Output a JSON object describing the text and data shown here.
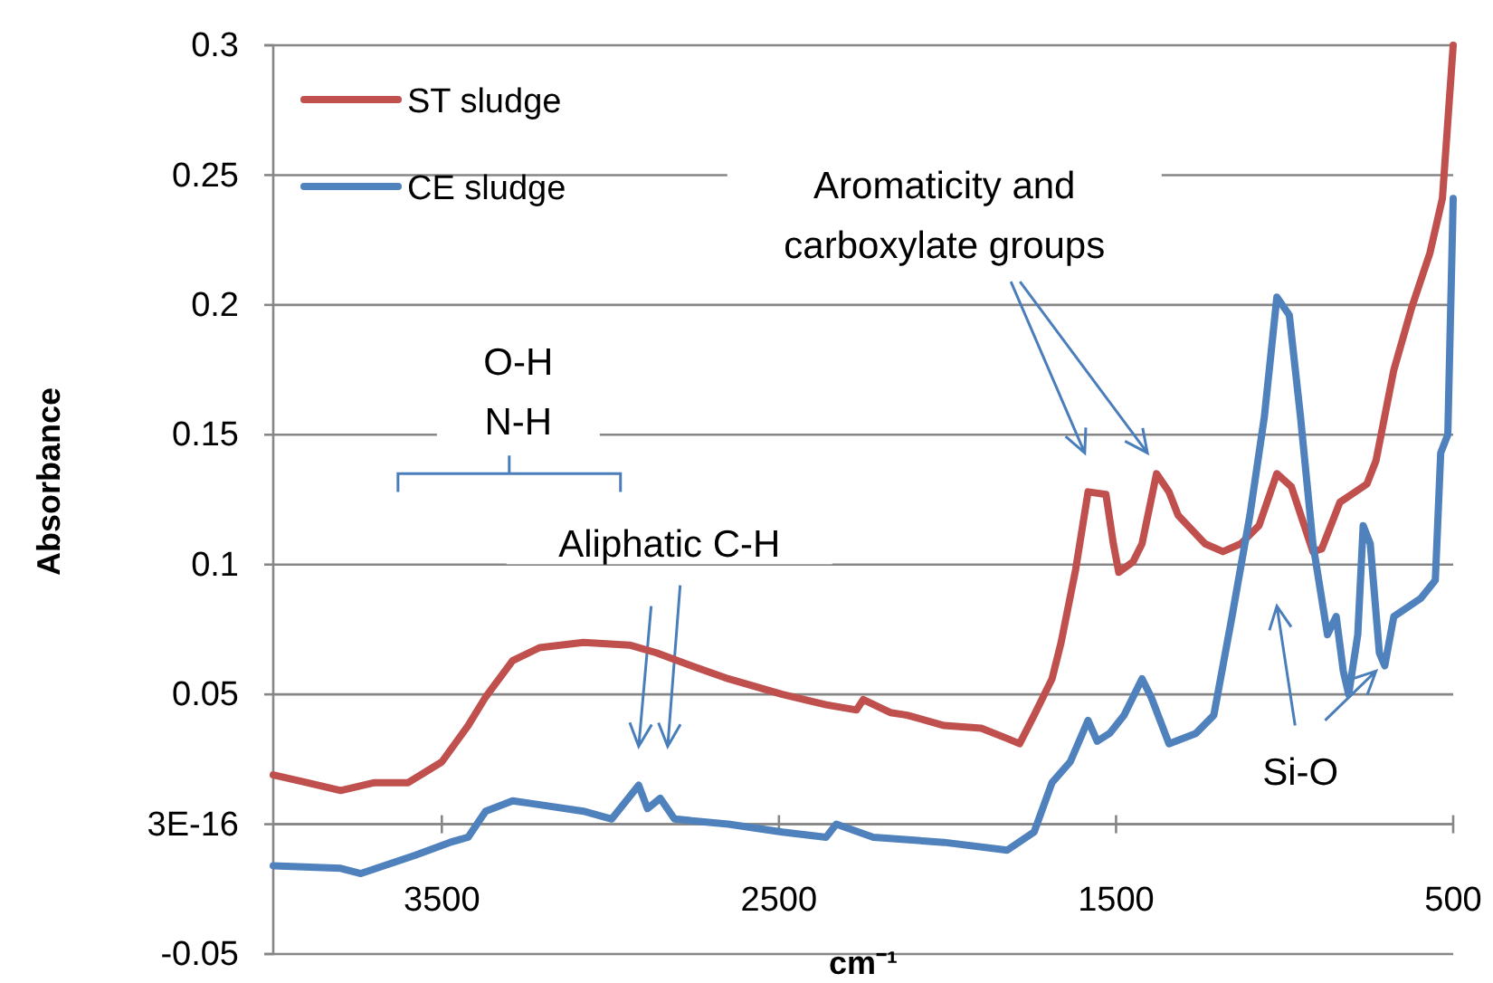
{
  "chart_data": {
    "type": "line",
    "xlabel": "cm⁻¹",
    "ylabel": "Absorbance",
    "xlim": [
      4000,
      500
    ],
    "xticks": [
      3500,
      2500,
      1500,
      500
    ],
    "ylim": [
      -0.05,
      0.3
    ],
    "yticks": [
      -0.05,
      {
        "value": 0,
        "label": "3E-16"
      },
      0.05,
      0.1,
      0.15,
      0.2,
      0.25,
      0.3
    ],
    "grid": "y",
    "legend": "top left",
    "line_style": "solid",
    "marker": "none",
    "series": [
      {
        "name": "ST sludge",
        "color": "#c0504d",
        "x": [
          4000,
          3900,
          3800,
          3700,
          3600,
          3500,
          3422,
          3370,
          3290,
          3210,
          3080,
          2943,
          2863,
          2760,
          2650,
          2490,
          2360,
          2270,
          2250,
          2170,
          2120,
          2010,
          1900,
          1823,
          1786,
          1743,
          1690,
          1663,
          1620,
          1583,
          1530,
          1508,
          1492,
          1450,
          1423,
          1380,
          1343,
          1316,
          1236,
          1183,
          1130,
          1076,
          1023,
          980,
          916,
          890,
          836,
          756,
          729,
          676,
          623,
          569,
          532,
          500
        ],
        "values": [
          0.019,
          0.016,
          0.013,
          0.016,
          0.016,
          0.024,
          0.038,
          0.049,
          0.063,
          0.068,
          0.07,
          0.069,
          0.066,
          0.061,
          0.056,
          0.05,
          0.046,
          0.044,
          0.048,
          0.043,
          0.042,
          0.038,
          0.037,
          0.033,
          0.031,
          0.042,
          0.056,
          0.07,
          0.098,
          0.128,
          0.127,
          0.108,
          0.097,
          0.101,
          0.108,
          0.135,
          0.128,
          0.119,
          0.108,
          0.105,
          0.108,
          0.115,
          0.135,
          0.13,
          0.105,
          0.106,
          0.124,
          0.131,
          0.14,
          0.175,
          0.199,
          0.22,
          0.241,
          0.3
        ]
      },
      {
        "name": "CE sludge",
        "color": "#4f81bd",
        "x": [
          4000,
          3800,
          3740,
          3580,
          3476,
          3422,
          3370,
          3290,
          3236,
          3080,
          2996,
          2916,
          2890,
          2852,
          2810,
          2650,
          2490,
          2360,
          2330,
          2220,
          2010,
          1823,
          1743,
          1690,
          1636,
          1583,
          1556,
          1519,
          1476,
          1423,
          1396,
          1343,
          1263,
          1210,
          1156,
          1103,
          1060,
          1023,
          986,
          953,
          916,
          873,
          847,
          826,
          810,
          783,
          767,
          746,
          719,
          703,
          676,
          596,
          553,
          537,
          516,
          500
        ],
        "values": [
          -0.016,
          -0.017,
          -0.019,
          -0.012,
          -0.007,
          -0.005,
          0.005,
          0.009,
          0.008,
          0.005,
          0.002,
          0.015,
          0.006,
          0.01,
          0.002,
          0.0,
          -0.003,
          -0.005,
          0.0,
          -0.005,
          -0.007,
          -0.01,
          -0.003,
          0.016,
          0.024,
          0.04,
          0.032,
          0.035,
          0.042,
          0.056,
          0.049,
          0.031,
          0.035,
          0.042,
          0.08,
          0.119,
          0.157,
          0.203,
          0.196,
          0.157,
          0.108,
          0.073,
          0.08,
          0.059,
          0.05,
          0.073,
          0.115,
          0.108,
          0.066,
          0.061,
          0.08,
          0.087,
          0.094,
          0.143,
          0.15,
          0.241
        ]
      }
    ],
    "annotations": [
      "O-H\nN-H",
      "Aliphatic C-H",
      "Aromaticity and\ncarboxylate groups",
      "Si-O"
    ]
  }
}
